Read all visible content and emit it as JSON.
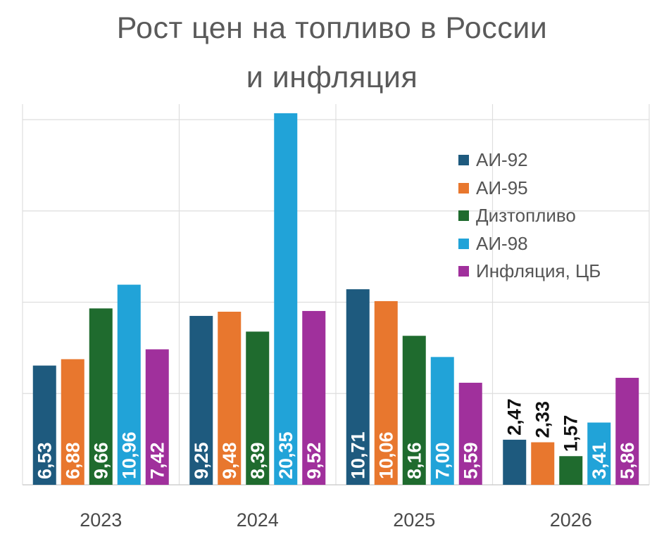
{
  "title": {
    "line1": "Рост цен на топливо в России",
    "line2": "и инфляция"
  },
  "chart_data": {
    "type": "bar",
    "categories": [
      "2023",
      "2024",
      "2025",
      "2026"
    ],
    "series": [
      {
        "name": "АИ-92",
        "color": "#1e5a7e",
        "values": [
          6.53,
          9.25,
          10.71,
          2.47
        ],
        "labels": [
          "6,53",
          "9,25",
          "10,71",
          "2,47"
        ]
      },
      {
        "name": "АИ-95",
        "color": "#e8772e",
        "values": [
          6.88,
          9.48,
          10.06,
          2.33
        ],
        "labels": [
          "6,88",
          "9,48",
          "10,06",
          "2,33"
        ]
      },
      {
        "name": "Дизтопливо",
        "color": "#1f6b2e",
        "values": [
          9.66,
          8.39,
          8.16,
          1.57
        ],
        "labels": [
          "9,66",
          "8,39",
          "8,16",
          "1,57"
        ]
      },
      {
        "name": "АИ-98",
        "color": "#21a3d8",
        "values": [
          10.96,
          20.35,
          7.0,
          3.41
        ],
        "labels": [
          "10,96",
          "20,35",
          "7,00",
          "3,41"
        ]
      },
      {
        "name": "Инфляция, ЦБ",
        "color": "#a0309c",
        "values": [
          7.42,
          9.52,
          5.59,
          5.86
        ],
        "labels": [
          "7,42",
          "9,52",
          "5,59",
          "5,86"
        ]
      }
    ],
    "ylim": [
      0,
      20.5
    ],
    "grid": true,
    "legend": "right"
  }
}
